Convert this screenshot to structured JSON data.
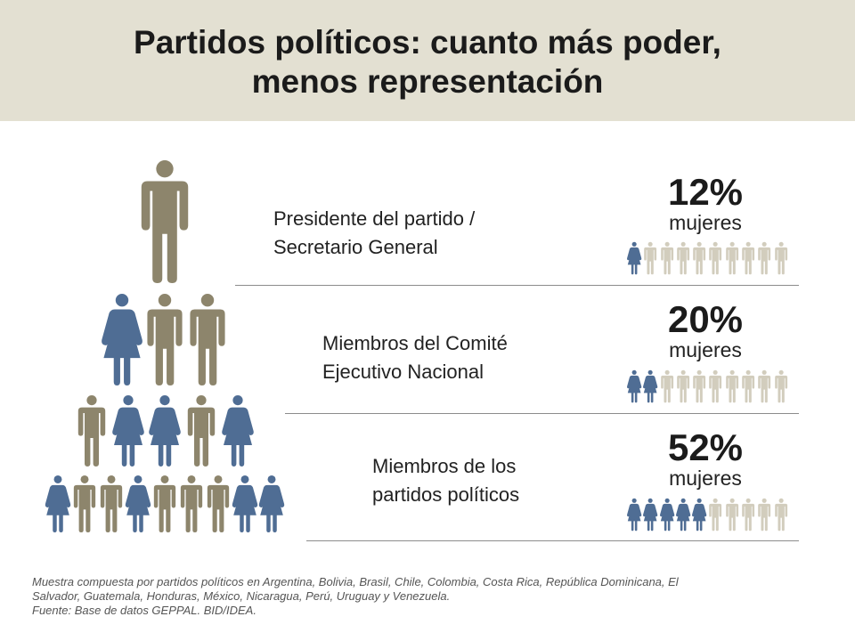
{
  "title": {
    "line1": "Partidos políticos: cuanto más poder,",
    "line2": "menos representación"
  },
  "colors": {
    "women": "#4f6d94",
    "men": "#8d856c",
    "men_light": "#d2cdbd",
    "band": "#e3e0d2"
  },
  "chart_data": {
    "type": "pictogram",
    "unit": "mujeres",
    "icons_per_row": 10,
    "rows": [
      {
        "label_line1": "Presidente del partido /",
        "label_line2": "Secretario General",
        "value_label": "12%",
        "value": 12,
        "women_icons": 1
      },
      {
        "label_line1": "Miembros del Comité",
        "label_line2": "Ejecutivo Nacional",
        "value_label": "20%",
        "value": 20,
        "women_icons": 2
      },
      {
        "label_line1": "Miembros de los",
        "label_line2": "partidos políticos",
        "value_label": "52%",
        "value": 52,
        "women_icons": 5
      }
    ],
    "pyramid": [
      [
        "m"
      ],
      [
        "w",
        "m",
        "m"
      ],
      [
        "m",
        "w",
        "w",
        "m",
        "w"
      ],
      [
        "w",
        "m",
        "m",
        "w",
        "m",
        "m",
        "m",
        "w",
        "w"
      ]
    ]
  },
  "footnote": {
    "line1": "Muestra compuesta por partidos políticos en Argentina, Bolivia, Brasil, Chile, Colombia, Costa Rica, República Dominicana, El",
    "line2": "Salvador, Guatemala, Honduras, México, Nicaragua, Perú, Uruguay y Venezuela.",
    "line3": "Fuente: Base de datos GEPPAL. BID/IDEA."
  }
}
